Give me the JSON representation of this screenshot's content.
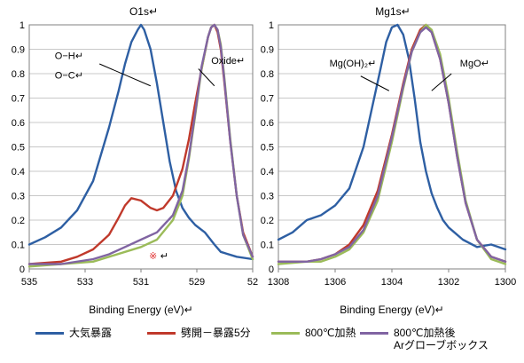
{
  "chart_data": [
    {
      "type": "line",
      "title": "O1s↵",
      "xlabel": "Binding Energy (eV)↵",
      "ylabel": "",
      "xlim": [
        535,
        528
      ],
      "ylim": [
        0,
        1
      ],
      "x_ticks": [
        "535",
        "533",
        "531",
        "529",
        "52"
      ],
      "y_ticks": [
        "0",
        "0.1",
        "0.2",
        "0.3",
        "0.4",
        "0.5",
        "0.6",
        "0.7",
        "0.8",
        "0.9",
        "1"
      ],
      "grid": true,
      "annotations": [
        {
          "text": "O−H↵",
          "x": 534.2,
          "y": 0.86
        },
        {
          "text": "O−C↵",
          "x": 534.2,
          "y": 0.78
        },
        {
          "text": "Oxide↵",
          "x": 529.3,
          "y": 0.84
        },
        {
          "text": "※",
          "x": 531.25,
          "y": 0.04,
          "color": "#e03030"
        },
        {
          "text": "↵",
          "x": 530.9,
          "y": 0.04
        }
      ],
      "leader_lines": [
        {
          "x1": 532.8,
          "y1": 0.84,
          "x2": 531.2,
          "y2": 0.75
        },
        {
          "x1": 529.7,
          "y1": 0.82,
          "x2": 529.2,
          "y2": 0.75
        }
      ],
      "series": [
        {
          "name": "大気暴露",
          "color": "#2e5fa3",
          "x": [
            535,
            534.5,
            534,
            533.5,
            533,
            532.5,
            532.2,
            532,
            531.8,
            531.6,
            531.5,
            531.4,
            531.2,
            531,
            530.8,
            530.6,
            530.4,
            530.2,
            530,
            529.8,
            529.5,
            529.2,
            529,
            528.5,
            528
          ],
          "y": [
            0.1,
            0.13,
            0.17,
            0.24,
            0.36,
            0.58,
            0.73,
            0.84,
            0.93,
            0.98,
            1.0,
            0.98,
            0.9,
            0.76,
            0.6,
            0.44,
            0.32,
            0.25,
            0.21,
            0.18,
            0.15,
            0.1,
            0.07,
            0.05,
            0.04
          ]
        },
        {
          "name": "劈開－暴露5分",
          "color": "#c0392b",
          "x": [
            535,
            534,
            533.5,
            533,
            532.5,
            532.2,
            532,
            531.8,
            531.5,
            531.2,
            531,
            530.8,
            530.5,
            530.2,
            530,
            529.8,
            529.6,
            529.4,
            529.3,
            529.2,
            529.1,
            529,
            528.9,
            528.7,
            528.5,
            528.3,
            528
          ],
          "y": [
            0.02,
            0.03,
            0.05,
            0.08,
            0.14,
            0.21,
            0.26,
            0.29,
            0.28,
            0.25,
            0.24,
            0.25,
            0.3,
            0.41,
            0.53,
            0.68,
            0.82,
            0.95,
            0.99,
            1.0,
            0.97,
            0.9,
            0.78,
            0.52,
            0.3,
            0.15,
            0.05
          ]
        },
        {
          "name": "800℃加熱",
          "color": "#9bbb59",
          "x": [
            535,
            534,
            533,
            532.5,
            532,
            531.5,
            531,
            530.5,
            530.2,
            530,
            529.8,
            529.6,
            529.4,
            529.3,
            529.2,
            529.1,
            529,
            528.9,
            528.7,
            528.5,
            528.3,
            528
          ],
          "y": [
            0.01,
            0.02,
            0.03,
            0.05,
            0.07,
            0.09,
            0.12,
            0.2,
            0.3,
            0.45,
            0.63,
            0.82,
            0.95,
            0.99,
            1.0,
            0.98,
            0.92,
            0.8,
            0.53,
            0.3,
            0.14,
            0.04
          ]
        },
        {
          "name": "800℃加熱後\nArグローブボックス",
          "color": "#8064a2",
          "x": [
            535,
            534,
            533,
            532.5,
            532,
            531.5,
            531,
            530.5,
            530.2,
            530,
            529.8,
            529.6,
            529.4,
            529.3,
            529.2,
            529.1,
            529,
            528.9,
            528.7,
            528.5,
            528.3,
            528
          ],
          "y": [
            0.02,
            0.02,
            0.04,
            0.06,
            0.09,
            0.12,
            0.15,
            0.22,
            0.32,
            0.46,
            0.64,
            0.83,
            0.95,
            0.99,
            1.0,
            0.98,
            0.91,
            0.79,
            0.52,
            0.3,
            0.14,
            0.05
          ]
        }
      ]
    },
    {
      "type": "line",
      "title": "Mg1s↵",
      "xlabel": "Binding Energy (eV)↵",
      "ylabel": "",
      "xlim": [
        1308,
        1300
      ],
      "ylim": [
        0,
        1
      ],
      "x_ticks": [
        "1308",
        "1306",
        "1304",
        "1302",
        "1300"
      ],
      "y_ticks": [
        "0",
        "0.1",
        "0.2",
        "0.3",
        "0.4",
        "0.5",
        "0.6",
        "0.7",
        "0.8",
        "0.9",
        "1"
      ],
      "grid": true,
      "annotations": [
        {
          "text": "Mg(OH)₂↵",
          "x": 1306.2,
          "y": 0.83
        },
        {
          "text": "MgO↵",
          "x": 1301.6,
          "y": 0.83
        }
      ],
      "leader_lines": [
        {
          "x1": 1305.1,
          "y1": 0.79,
          "x2": 1304.1,
          "y2": 0.73
        },
        {
          "x1": 1301.9,
          "y1": 0.8,
          "x2": 1302.6,
          "y2": 0.73
        }
      ],
      "series": [
        {
          "name": "大気暴露",
          "color": "#2e5fa3",
          "x": [
            1308,
            1307.5,
            1307,
            1306.5,
            1306,
            1305.5,
            1305,
            1304.7,
            1304.4,
            1304.2,
            1304,
            1303.8,
            1303.6,
            1303.4,
            1303.2,
            1303,
            1302.8,
            1302.6,
            1302.4,
            1302.2,
            1302,
            1301.5,
            1301,
            1300.5,
            1300
          ],
          "y": [
            0.12,
            0.15,
            0.2,
            0.22,
            0.26,
            0.33,
            0.5,
            0.66,
            0.82,
            0.93,
            0.99,
            1.0,
            0.96,
            0.86,
            0.7,
            0.52,
            0.4,
            0.31,
            0.25,
            0.2,
            0.17,
            0.12,
            0.09,
            0.1,
            0.08
          ]
        },
        {
          "name": "劈開－暴露5分",
          "color": "#c0392b",
          "x": [
            1308,
            1307,
            1306.5,
            1306,
            1305.5,
            1305,
            1304.5,
            1304,
            1303.6,
            1303.3,
            1303,
            1302.8,
            1302.6,
            1302.3,
            1302,
            1301.7,
            1301.4,
            1301,
            1300.5,
            1300
          ],
          "y": [
            0.03,
            0.03,
            0.04,
            0.06,
            0.1,
            0.18,
            0.32,
            0.55,
            0.76,
            0.9,
            0.98,
            1.0,
            0.97,
            0.86,
            0.68,
            0.46,
            0.27,
            0.12,
            0.05,
            0.03
          ]
        },
        {
          "name": "800℃加熱",
          "color": "#9bbb59",
          "x": [
            1308,
            1307,
            1306.5,
            1306,
            1305.5,
            1305,
            1304.5,
            1304,
            1303.6,
            1303.3,
            1303,
            1302.8,
            1302.6,
            1302.3,
            1302,
            1301.7,
            1301.4,
            1301,
            1300.5,
            1300
          ],
          "y": [
            0.02,
            0.03,
            0.03,
            0.05,
            0.08,
            0.15,
            0.28,
            0.52,
            0.74,
            0.89,
            0.97,
            1.0,
            0.98,
            0.88,
            0.7,
            0.48,
            0.28,
            0.12,
            0.04,
            0.02
          ]
        },
        {
          "name": "800℃加熱後\nArグローブボックス",
          "color": "#8064a2",
          "x": [
            1308,
            1307,
            1306.5,
            1306,
            1305.5,
            1305,
            1304.5,
            1304,
            1303.6,
            1303.3,
            1303,
            1302.8,
            1302.6,
            1302.3,
            1302,
            1301.7,
            1301.4,
            1301,
            1300.5,
            1300
          ],
          "y": [
            0.03,
            0.03,
            0.04,
            0.06,
            0.09,
            0.16,
            0.3,
            0.54,
            0.75,
            0.89,
            0.97,
            0.99,
            0.97,
            0.86,
            0.68,
            0.46,
            0.27,
            0.12,
            0.05,
            0.03
          ]
        }
      ]
    }
  ],
  "legend": {
    "items": [
      {
        "label": "大気暴露",
        "color": "#2e5fa3"
      },
      {
        "label": "劈開－暴露5分",
        "color": "#c0392b"
      },
      {
        "label": "800℃加熱",
        "color": "#9bbb59"
      },
      {
        "label": "800℃加熱後\nArグローブボックス",
        "color": "#8064a2"
      }
    ]
  }
}
